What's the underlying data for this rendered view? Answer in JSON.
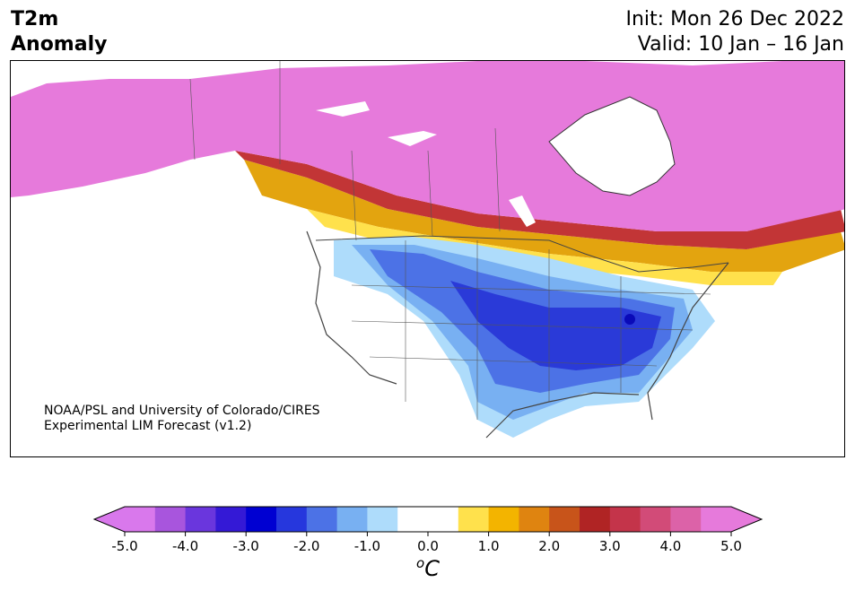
{
  "header": {
    "title_line1": "T2m",
    "title_line2": "Anomaly",
    "init": "Init: Mon 26 Dec 2022",
    "valid": "Valid: 10 Jan – 16 Jan"
  },
  "credit": {
    "line1": "NOAA/PSL and University of Colorado/CIRES",
    "line2": "Experimental LIM Forecast (v1.2)"
  },
  "colorbar": {
    "unit_symbol": "o",
    "unit_letter": "C",
    "ticks": [
      "-5.0",
      "-4.0",
      "-3.0",
      "-2.0",
      "-1.0",
      "0.0",
      "1.0",
      "2.0",
      "3.0",
      "4.0",
      "5.0"
    ],
    "colors": [
      "#d978ec",
      "#a855dd",
      "#6a36dd",
      "#3419d6",
      "#0000d2",
      "#2637dd",
      "#4c72e6",
      "#78b0f2",
      "#aedcfb",
      "#ffffff",
      "#ffffff",
      "#ffe14c",
      "#f3b400",
      "#df8410",
      "#c8541a",
      "#b02424",
      "#c4344a",
      "#d24b78",
      "#dc62a8",
      "#e67adb"
    ],
    "min_color": "#d978ec",
    "max_color": "#e67adb",
    "range": [
      -5.0,
      5.0
    ]
  },
  "map": {
    "region": "North America",
    "cold_anomaly_color": "#2a3ad8",
    "warm_anomaly_color": "#e67adb"
  }
}
